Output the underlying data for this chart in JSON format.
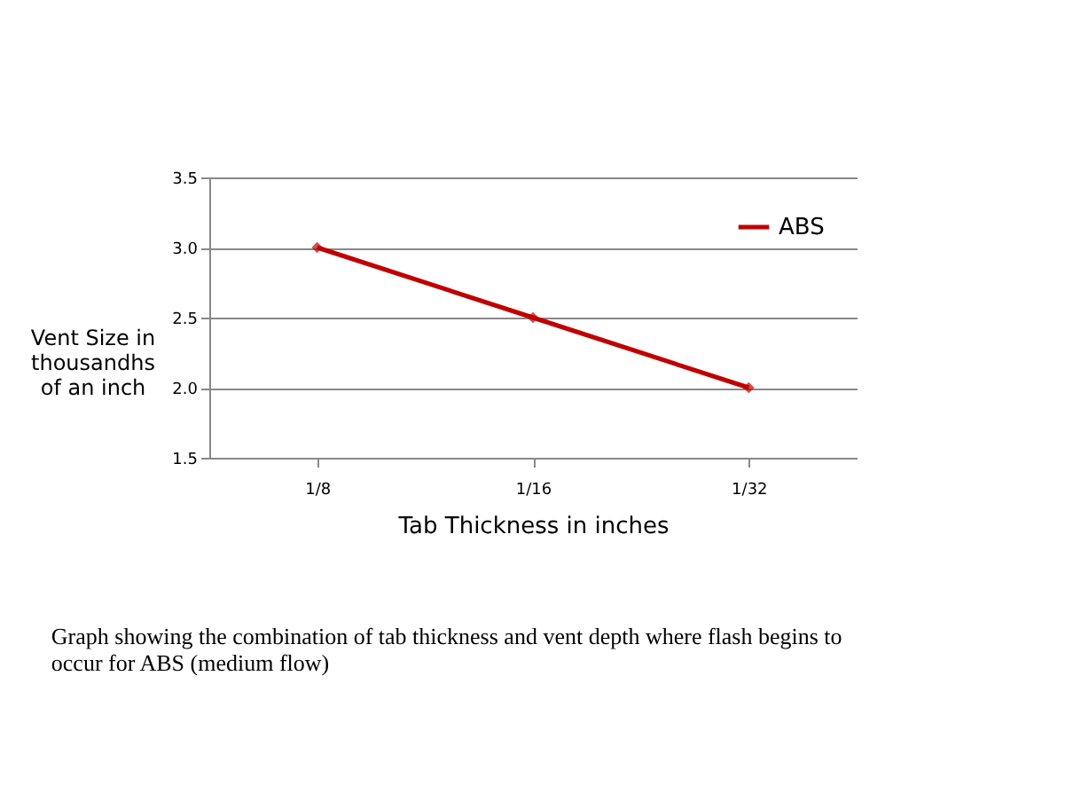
{
  "chart_data": {
    "type": "line",
    "categories": [
      "1/8",
      "1/16",
      "1/32"
    ],
    "series": [
      {
        "name": "ABS",
        "color": "#c00000",
        "values": [
          3.0,
          2.5,
          2.0
        ]
      }
    ],
    "xlabel": "Tab Thickness in inches",
    "ylabel": "Vent Size in thousandhs of an inch",
    "ylim": [
      1.5,
      3.5
    ],
    "yticks": [
      1.5,
      {
        "value": 2,
        "label": "2.0"
      },
      2.5,
      {
        "value": 3,
        "label": "3.0"
      },
      3.5
    ],
    "grid": "y",
    "legend": "top right",
    "marker": "diamond",
    "line_style": "solid",
    "annotations": [
      "Graph showing the combination of tab thickness and vent depth where flash begins to occur for ABS  (medium flow)"
    ]
  }
}
